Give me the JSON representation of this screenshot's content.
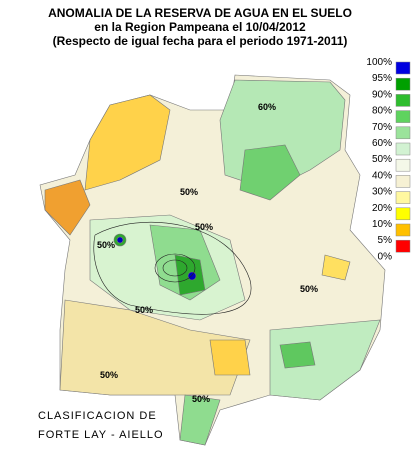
{
  "header": {
    "title": "ANOMALIA DE LA RESERVA DE AGUA EN EL SUELO",
    "subtitle": "en la Region Pampeana el  10/04/2012",
    "note": "(Respecto de igual fecha para el periodo 1971-2011)"
  },
  "legend": {
    "labels": [
      "100%",
      "95%",
      "90%",
      "80%",
      "70%",
      "60%",
      "50%",
      "40%",
      "30%",
      "20%",
      "10%",
      "5%",
      "0%"
    ],
    "colors": [
      "#0000e0",
      "#00a000",
      "#2ebd2e",
      "#5fd35f",
      "#9be39b",
      "#d2f2d2",
      "#f4f8e8",
      "#f6f1d4",
      "#fff8a0",
      "#ffff00",
      "#ffc000",
      "#ff0000"
    ]
  },
  "contour_labels": [
    "60%",
    "50%",
    "50%",
    "50%",
    "50%",
    "50%",
    "50%",
    "50%"
  ],
  "credit": [
    "CLASIFICACION DE",
    "FORTE LAY - AIELLO"
  ]
}
